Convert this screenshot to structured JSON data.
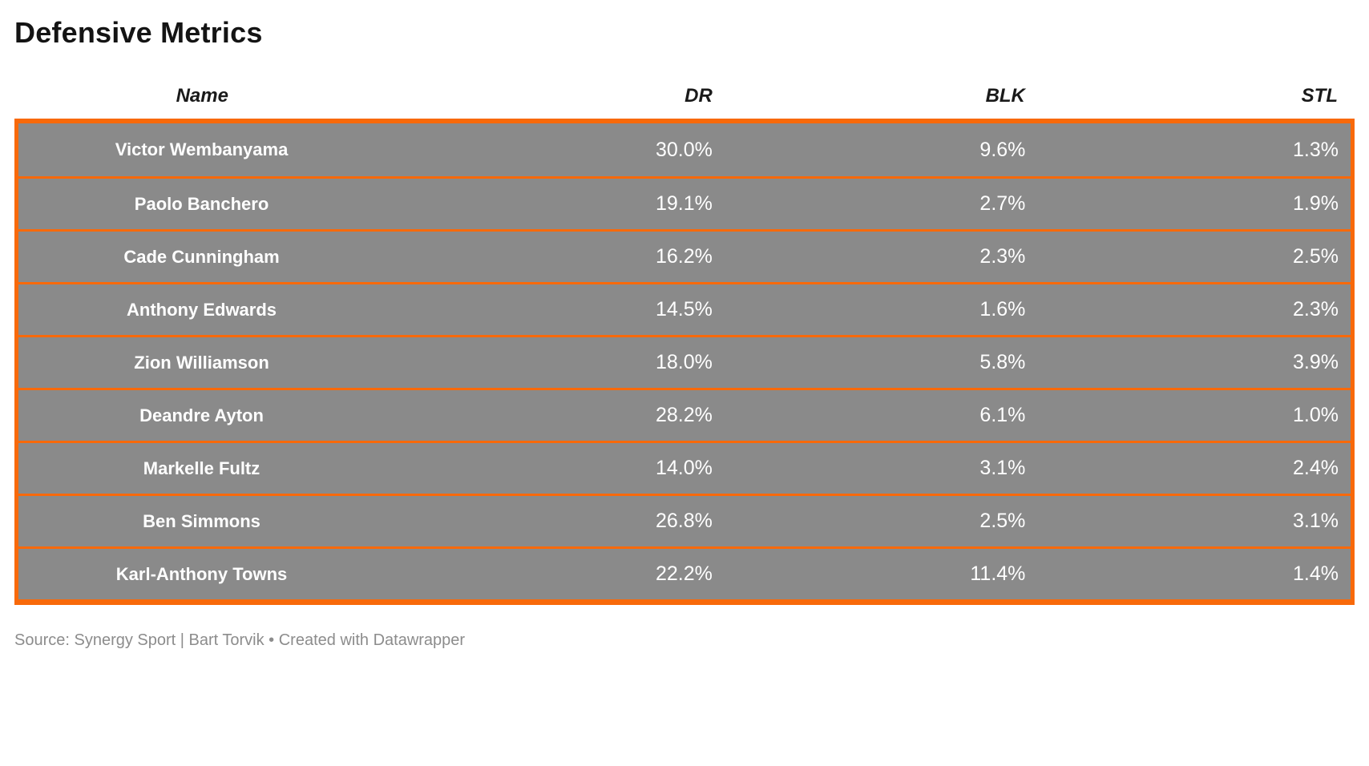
{
  "header": {
    "title": "Defensive Metrics"
  },
  "chart_data": {
    "type": "table",
    "title": "Defensive Metrics",
    "columns": [
      "Name",
      "DR",
      "BLK",
      "STL"
    ],
    "column_alignment": [
      "center",
      "right",
      "right",
      "right"
    ],
    "rows": [
      [
        "Victor Wembanyama",
        "30.0%",
        "9.6%",
        "1.3%"
      ],
      [
        "Paolo Banchero",
        "19.1%",
        "2.7%",
        "1.9%"
      ],
      [
        "Cade Cunningham",
        "16.2%",
        "2.3%",
        "2.5%"
      ],
      [
        "Anthony Edwards",
        "14.5%",
        "1.6%",
        "2.3%"
      ],
      [
        "Zion Williamson",
        "18.0%",
        "5.8%",
        "3.9%"
      ],
      [
        "Deandre Ayton",
        "28.2%",
        "6.1%",
        "1.0%"
      ],
      [
        "Markelle Fultz",
        "14.0%",
        "3.1%",
        "2.4%"
      ],
      [
        "Ben Simmons",
        "26.8%",
        "2.5%",
        "3.1%"
      ],
      [
        "Karl-Anthony Towns",
        "22.2%",
        "11.4%",
        "1.4%"
      ]
    ]
  },
  "footer": {
    "source_text": "Source: Synergy Sport | Bart Torvik • Created with Datawrapper"
  },
  "colors": {
    "accent_orange": "#f8690a",
    "row_background": "#8a8a8a",
    "cell_text": "#ffffff",
    "title_text": "#141414",
    "footer_text": "#8c8c8c"
  }
}
